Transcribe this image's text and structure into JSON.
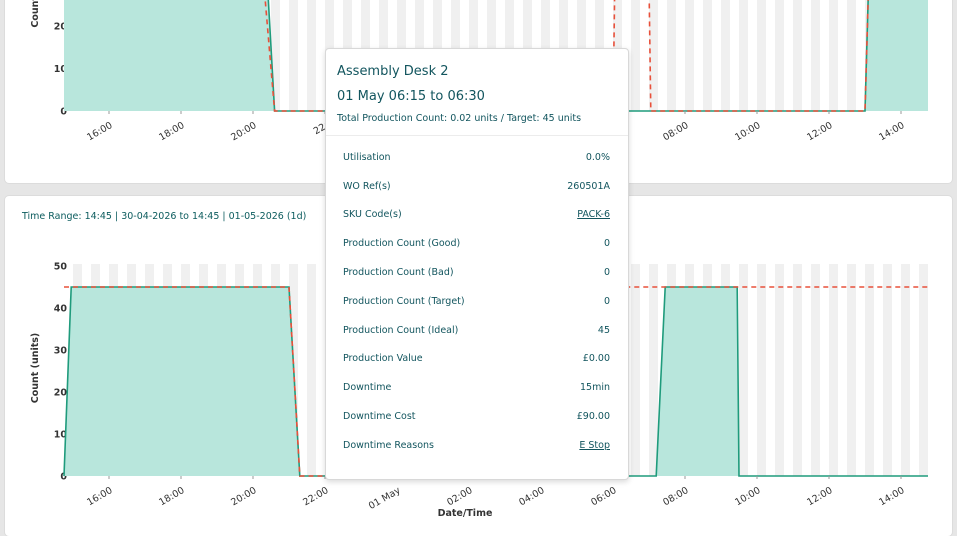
{
  "colors": {
    "fill": "#b8e6dc",
    "line": "#1f9b7c",
    "target": "#e8503a",
    "text": "#12555e",
    "band": "#f0f0f0"
  },
  "top_panel": {
    "y_axis_label": "Count (",
    "x_tick_labels": [
      "16:00",
      "18:00",
      "20:00",
      "22:",
      "08:00",
      "10:00",
      "12:00",
      "14:00"
    ]
  },
  "bottom_panel": {
    "time_range": "Time Range: 14:45 | 30-04-2026 to 14:45 | 01-05-2026 (1d)",
    "y_axis_label": "Count (units)",
    "x_axis_label": "Date/Time"
  },
  "chart_data": [
    {
      "type": "area",
      "ylabel": "Count (",
      "ylim": [
        0,
        30
      ],
      "yticks": [
        0,
        10,
        20
      ],
      "x_tick_labels": [
        "16:00",
        "18:00",
        "20:00",
        "22:",
        "08:00",
        "10:00",
        "12:00",
        "14:00"
      ],
      "series": [
        {
          "values_hours": [
            [
              14.75,
              30
            ],
            [
              20.4,
              30
            ],
            [
              20.6,
              0
            ],
            [
              37.0,
              0
            ],
            [
              37.1,
              30
            ],
            [
              38.75,
              30
            ]
          ]
        },
        {
          "kind": "target",
          "values_hours": [
            [
              20.3,
              30
            ],
            [
              20.6,
              0
            ],
            [
              30.0,
              0
            ],
            [
              30.05,
              30
            ],
            [
              31.0,
              30
            ],
            [
              31.05,
              0
            ],
            [
              37.0,
              0
            ],
            [
              37.1,
              30
            ]
          ]
        }
      ]
    },
    {
      "type": "area",
      "xlabel": "Date/Time",
      "ylabel": "Count (units)",
      "ylim": [
        0,
        50
      ],
      "yticks": [
        0,
        10,
        20,
        30,
        40,
        50
      ],
      "x_tick_labels": [
        "16:00",
        "18:00",
        "20:00",
        "22:00",
        "01 May",
        "02:00",
        "04:00",
        "06:00",
        "08:00",
        "10:00",
        "12:00",
        "14:00"
      ],
      "series": [
        {
          "values_hours": [
            [
              14.75,
              0
            ],
            [
              14.95,
              45
            ],
            [
              21.0,
              45
            ],
            [
              21.3,
              0
            ],
            [
              30.5,
              0
            ],
            [
              31.2,
              0
            ],
            [
              31.45,
              45
            ],
            [
              33.45,
              45
            ],
            [
              33.5,
              0
            ],
            [
              38.75,
              0
            ]
          ]
        },
        {
          "kind": "target",
          "values_hours": [
            [
              14.75,
              45
            ],
            [
              21.0,
              45
            ],
            [
              21.3,
              0
            ],
            [
              21.6,
              0
            ],
            [
              30.0,
              0
            ],
            [
              30.05,
              45
            ],
            [
              38.75,
              45
            ]
          ]
        }
      ]
    }
  ],
  "tooltip": {
    "machine": "Assembly Desk 2",
    "range": "01 May 06:15 to 06:30",
    "total": "Total Production Count: 0.02 units / Target: 45 units",
    "rows": [
      {
        "label": "Utilisation",
        "value": "0.0%",
        "link": false
      },
      {
        "label": "WO Ref(s)",
        "value": "260501A",
        "link": false
      },
      {
        "label": "SKU Code(s)",
        "value": "PACK-6",
        "link": true
      },
      {
        "label": "Production Count (Good)",
        "value": "0",
        "link": false
      },
      {
        "label": "Production Count (Bad)",
        "value": "0",
        "link": false
      },
      {
        "label": "Production Count (Target)",
        "value": "0",
        "link": false
      },
      {
        "label": "Production Count (Ideal)",
        "value": "45",
        "link": false
      },
      {
        "label": "Production Value",
        "value": "£0.00",
        "link": false
      },
      {
        "label": "Downtime",
        "value": "15min",
        "link": false
      },
      {
        "label": "Downtime Cost",
        "value": "£90.00",
        "link": false
      },
      {
        "label": "Downtime Reasons",
        "value": "E Stop",
        "link": true
      }
    ]
  }
}
